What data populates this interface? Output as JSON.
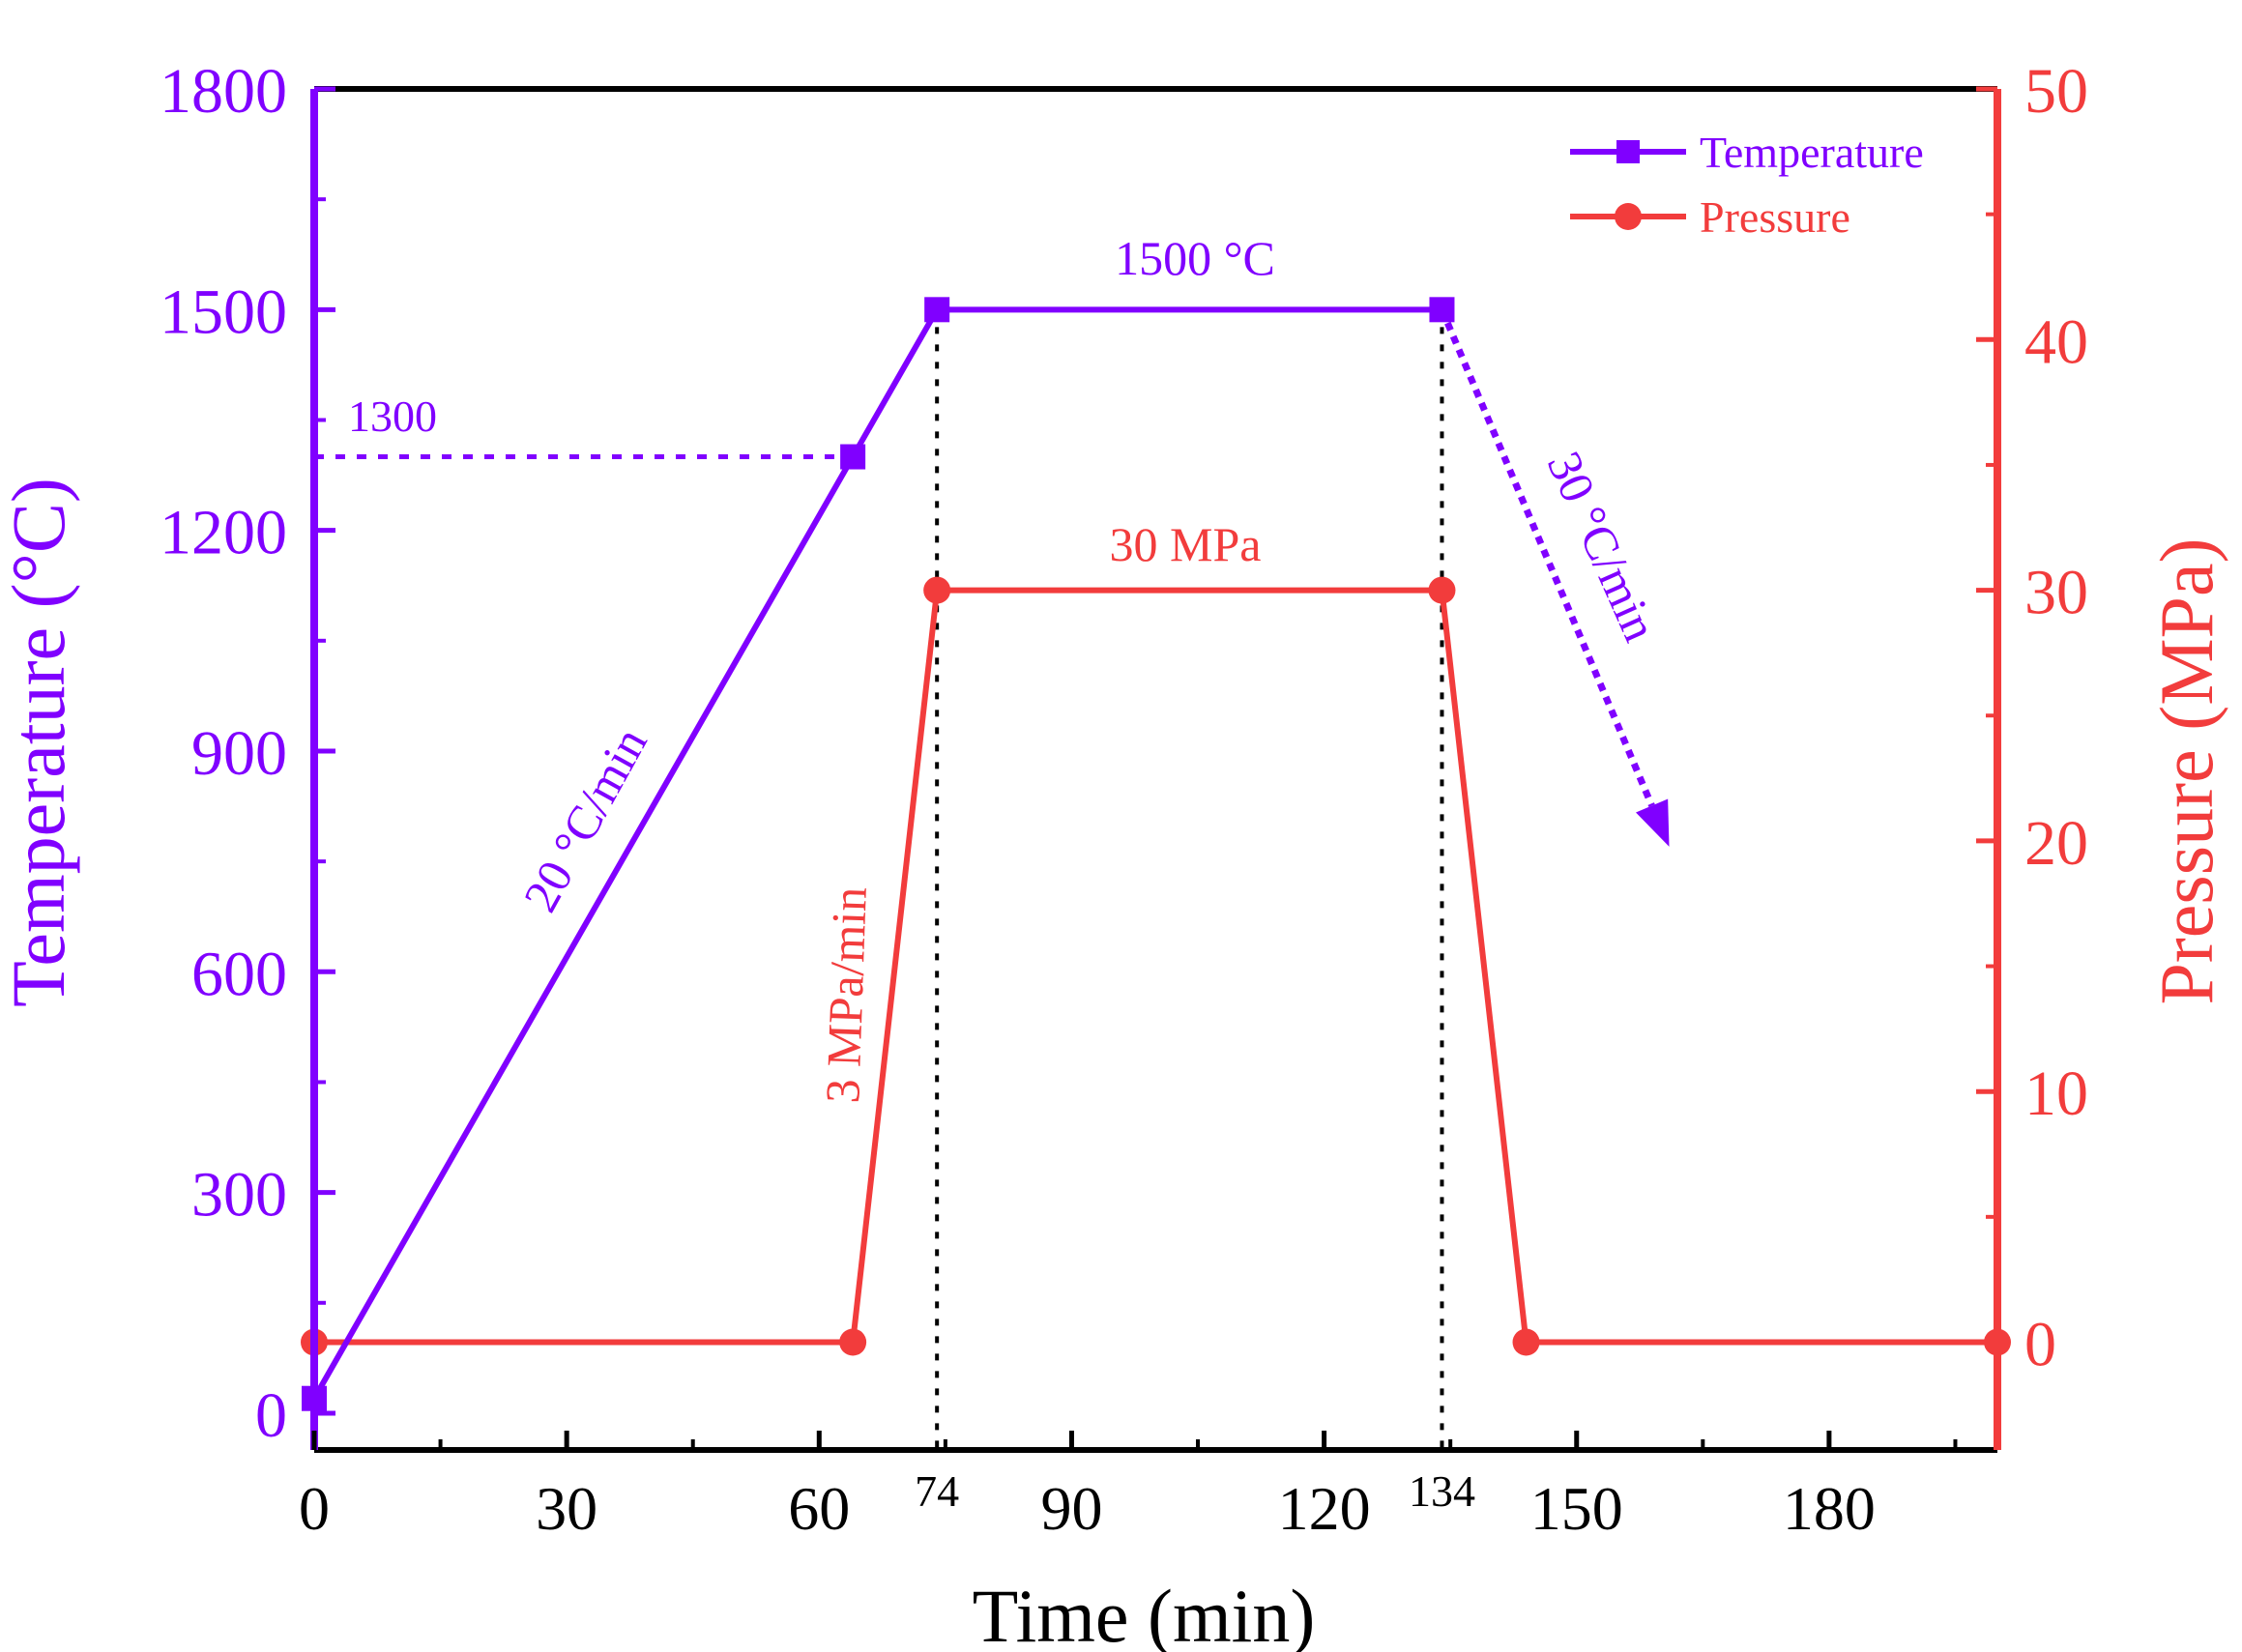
{
  "colors": {
    "temperature": "#8000ff",
    "pressure": "#f23c3c",
    "axis": "#000000"
  },
  "chart_data": {
    "type": "line",
    "xlabel": "Time (min)",
    "ylabel_left": "Temperature (°C)",
    "ylabel_right": "Pressure (MPa)",
    "xlim": [
      0,
      200
    ],
    "ylim_left": [
      -50,
      1800
    ],
    "ylim_right": [
      -4.3,
      50
    ],
    "x_ticks": [
      0,
      30,
      60,
      90,
      120,
      150,
      180
    ],
    "x_tick_labels": [
      "0",
      "30",
      "60",
      "90",
      "120",
      "150",
      "180"
    ],
    "x_extra_tick_labels": [
      {
        "x": 74,
        "label": "74"
      },
      {
        "x": 134,
        "label": "134"
      }
    ],
    "y_left_ticks": [
      0,
      300,
      600,
      900,
      1200,
      1500,
      1800
    ],
    "y_left_tick_labels": [
      "0",
      "300",
      "600",
      "900",
      "1200",
      "1500",
      "1800"
    ],
    "y_right_ticks": [
      0,
      10,
      20,
      30,
      40,
      50
    ],
    "y_right_tick_labels": [
      "0",
      "10",
      "20",
      "30",
      "40",
      "50"
    ],
    "series": [
      {
        "name": "Temperature",
        "axis": "left",
        "marker": "square",
        "x": [
          0,
          64,
          74,
          134
        ],
        "y": [
          20,
          1300,
          1500,
          1500
        ]
      },
      {
        "name": "Pressure",
        "axis": "right",
        "marker": "circle",
        "x": [
          0,
          64,
          74,
          134,
          144,
          200
        ],
        "y": [
          0,
          0,
          30,
          30,
          0,
          0
        ]
      }
    ],
    "cooling_arrow": {
      "from": [
        134,
        1500
      ],
      "to": [
        161,
        770
      ]
    },
    "reference_lines": [
      {
        "type": "horizontal",
        "axis": "left",
        "y": 1300,
        "x_from": 0,
        "x_to": 64
      },
      {
        "type": "vertical",
        "x": 74,
        "y_from": -50,
        "y_to": 1500
      },
      {
        "type": "vertical",
        "x": 134,
        "y_from": -50,
        "y_to": 1500
      }
    ],
    "annotations": [
      {
        "key": "ann1300",
        "text": "1300",
        "series": "Temperature"
      },
      {
        "key": "ann1500",
        "text": "1500 °C",
        "series": "Temperature"
      },
      {
        "key": "ann20",
        "text": "20 °C/min",
        "series": "Temperature"
      },
      {
        "key": "ann30min",
        "text": "30 °C/min",
        "series": "Temperature"
      },
      {
        "key": "ann30mpa",
        "text": "30 MPa",
        "series": "Pressure"
      },
      {
        "key": "ann3mpa",
        "text": "3 MPa/min",
        "series": "Pressure"
      }
    ],
    "legend": {
      "position": "top-right",
      "items": [
        "Temperature",
        "Pressure"
      ]
    }
  }
}
